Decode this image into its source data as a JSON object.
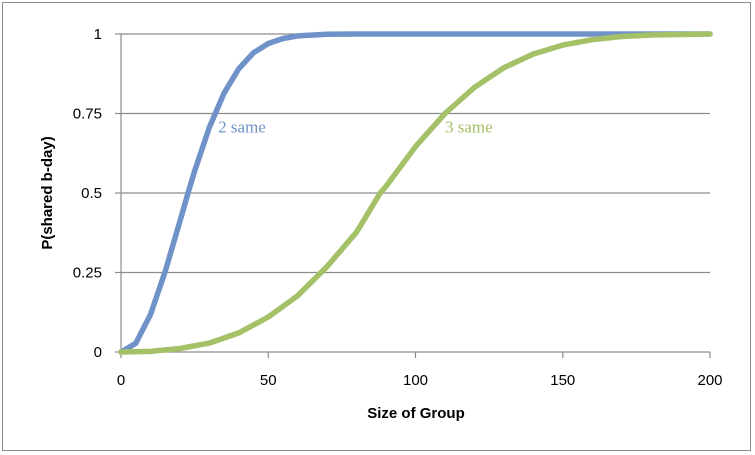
{
  "chart_data": {
    "type": "line",
    "title": "",
    "xlabel": "Size of Group",
    "ylabel": "P(shared b-day)",
    "xlim": [
      0,
      200
    ],
    "ylim": [
      0,
      1
    ],
    "x_ticks": [
      "0",
      "50",
      "100",
      "150",
      "200"
    ],
    "y_ticks": [
      "0",
      "0.25",
      "0.5",
      "0.75",
      "1"
    ],
    "grid": "horizontal",
    "legend": "none",
    "series": [
      {
        "name": "2 same",
        "color": "#6f93c8",
        "label_at": [
          33,
          0.69
        ],
        "x": [
          0,
          5,
          10,
          15,
          20,
          23,
          25,
          30,
          35,
          40,
          45,
          50,
          55,
          60,
          70,
          80,
          100,
          150,
          200
        ],
        "y": [
          0,
          0.027,
          0.117,
          0.253,
          0.411,
          0.507,
          0.569,
          0.706,
          0.814,
          0.891,
          0.941,
          0.97,
          0.986,
          0.994,
          0.999,
          1.0,
          1.0,
          1.0,
          1.0
        ]
      },
      {
        "name": "3 same",
        "color": "#a5c168",
        "label_at": [
          110,
          0.69
        ],
        "x": [
          0,
          10,
          20,
          30,
          40,
          50,
          60,
          70,
          80,
          88,
          90,
          100,
          110,
          120,
          130,
          140,
          150,
          160,
          170,
          180,
          200
        ],
        "y": [
          0,
          0.002,
          0.011,
          0.028,
          0.06,
          0.11,
          0.177,
          0.269,
          0.377,
          0.5,
          0.521,
          0.646,
          0.75,
          0.832,
          0.894,
          0.937,
          0.965,
          0.982,
          0.992,
          0.997,
          1.0
        ]
      }
    ]
  }
}
